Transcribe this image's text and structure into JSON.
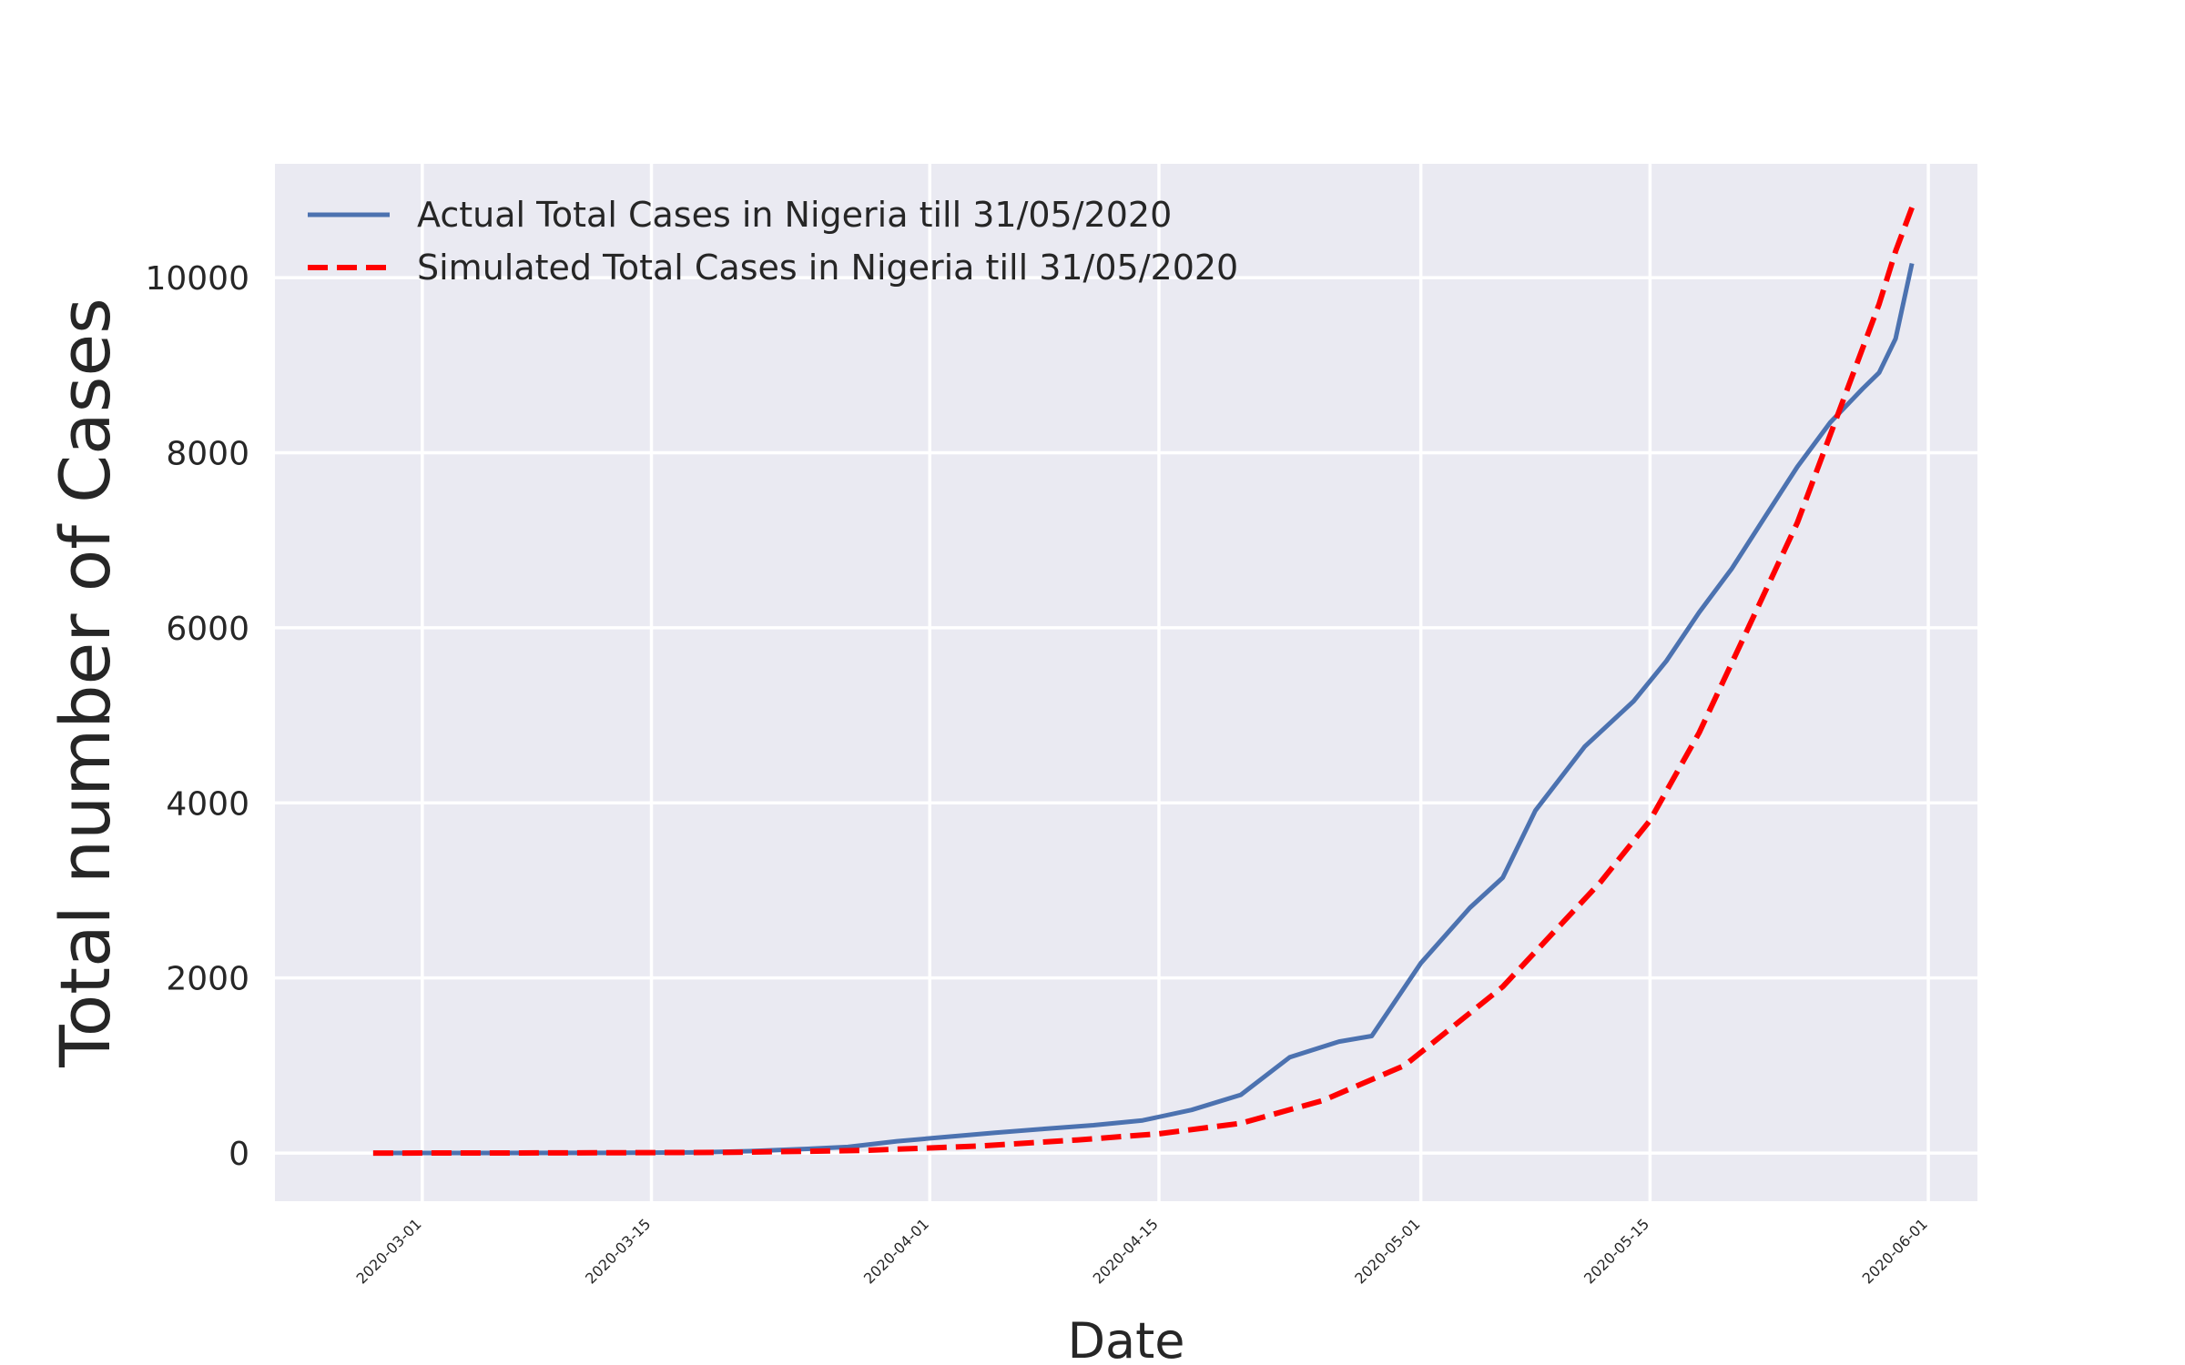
{
  "chart_data": {
    "type": "line",
    "title": "",
    "xlabel": "Date",
    "ylabel": "Total number of Cases",
    "x_ticks": [
      "2020-03-01",
      "2020-03-15",
      "2020-04-01",
      "2020-04-15",
      "2020-05-01",
      "2020-05-15",
      "2020-06-01"
    ],
    "y_ticks": [
      0,
      2000,
      4000,
      6000,
      8000,
      10000
    ],
    "ylim": [
      -550,
      11300
    ],
    "xlim": [
      "2020-02-21",
      "2020-06-04"
    ],
    "grid": true,
    "legend_position": "upper-left",
    "series": [
      {
        "name": "Actual Total Cases in Nigeria till 31/05/2020",
        "color": "#4c72b0",
        "style": "solid",
        "x": [
          "2020-02-27",
          "2020-03-05",
          "2020-03-12",
          "2020-03-18",
          "2020-03-21",
          "2020-03-24",
          "2020-03-27",
          "2020-03-30",
          "2020-04-02",
          "2020-04-05",
          "2020-04-08",
          "2020-04-11",
          "2020-04-14",
          "2020-04-17",
          "2020-04-20",
          "2020-04-23",
          "2020-04-26",
          "2020-04-28",
          "2020-05-01",
          "2020-05-04",
          "2020-05-06",
          "2020-05-08",
          "2020-05-11",
          "2020-05-14",
          "2020-05-16",
          "2020-05-18",
          "2020-05-20",
          "2020-05-22",
          "2020-05-24",
          "2020-05-26",
          "2020-05-28",
          "2020-05-29",
          "2020-05-30",
          "2020-05-31"
        ],
        "values": [
          1,
          1,
          2,
          8,
          22,
          44,
          70,
          135,
          184,
          232,
          276,
          318,
          373,
          493,
          665,
          1095,
          1273,
          1337,
          2170,
          2802,
          3145,
          3912,
          4641,
          5162,
          5621,
          6175,
          6677,
          7261,
          7839,
          8344,
          8733,
          8915,
          9302,
          10162
        ]
      },
      {
        "name": "Simulated Total Cases in Nigeria till 31/05/2020",
        "color": "#ff0000",
        "style": "dashed",
        "x": [
          "2020-02-27",
          "2020-03-10",
          "2020-03-20",
          "2020-03-28",
          "2020-04-04",
          "2020-04-10",
          "2020-04-15",
          "2020-04-20",
          "2020-04-25",
          "2020-04-30",
          "2020-05-03",
          "2020-05-06",
          "2020-05-09",
          "2020-05-12",
          "2020-05-15",
          "2020-05-18",
          "2020-05-21",
          "2020-05-24",
          "2020-05-27",
          "2020-05-29",
          "2020-05-30",
          "2020-05-31"
        ],
        "values": [
          0,
          2,
          8,
          30,
          80,
          150,
          220,
          340,
          600,
          1000,
          1450,
          1900,
          2500,
          3100,
          3800,
          4800,
          6000,
          7200,
          8700,
          9700,
          10300,
          10800
        ]
      }
    ]
  }
}
